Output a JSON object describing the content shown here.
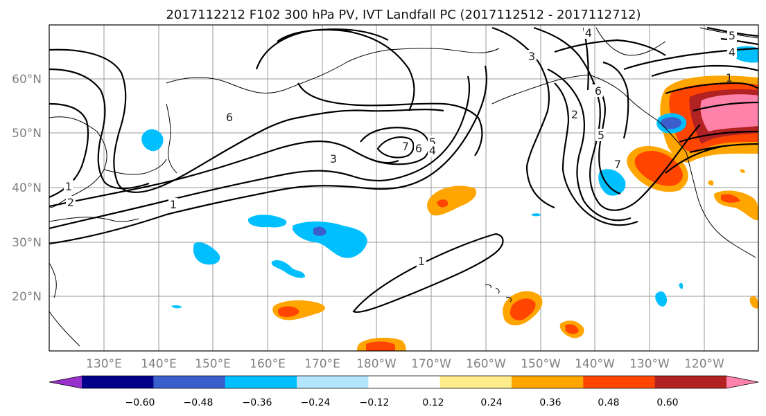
{
  "title": "2017112212 F102 300 hPa PV, IVT Landfall PC (2017112512 - 2017112712)",
  "lat_labels": [
    "60°N",
    "50°N",
    "40°N",
    "30°N",
    "20°N"
  ],
  "lon_labels": [
    "130°E",
    "140°E",
    "150°E",
    "160°E",
    "170°E",
    "180°W",
    "170°W",
    "160°W",
    "150°W",
    "140°W",
    "130°W",
    "120°W"
  ],
  "contour_labels": {
    "pv_1_west": "1",
    "pv_2_west": "2",
    "pv_1_jet": "1",
    "pv_6_jet": "6",
    "pv_3_trough": "3",
    "pv_7_trough": "7",
    "pv_6_trough": "6",
    "pv_5_trough": "5",
    "pv_4_trough": "4",
    "pv_1_subtropical": "1",
    "pv_3_ridge": "3",
    "pv_2_east": "2",
    "pv_6_east": "6",
    "pv_5_east": "5",
    "pv_4_north": "4",
    "pv_7_east": "7",
    "pv_1_ridge": "1",
    "pv_4_ne": "4",
    "pv_5_ne": "5"
  },
  "colorbar": {
    "tick_labels": [
      "−0.60",
      "−0.48",
      "−0.36",
      "−0.24",
      "−0.12",
      "0.12",
      "0.24",
      "0.36",
      "0.48",
      "0.60"
    ],
    "colors": [
      "#9932cc",
      "#00008b",
      "#3a5fcd",
      "#00bfff",
      "#b3e5fc",
      "#ffffff",
      "#ffec8b",
      "#ffa500",
      "#ff4500",
      "#b22222",
      "#ff82ab"
    ]
  },
  "field_colors": {
    "contour": "#000000",
    "coast": "#000000",
    "grid": "#999999"
  }
}
